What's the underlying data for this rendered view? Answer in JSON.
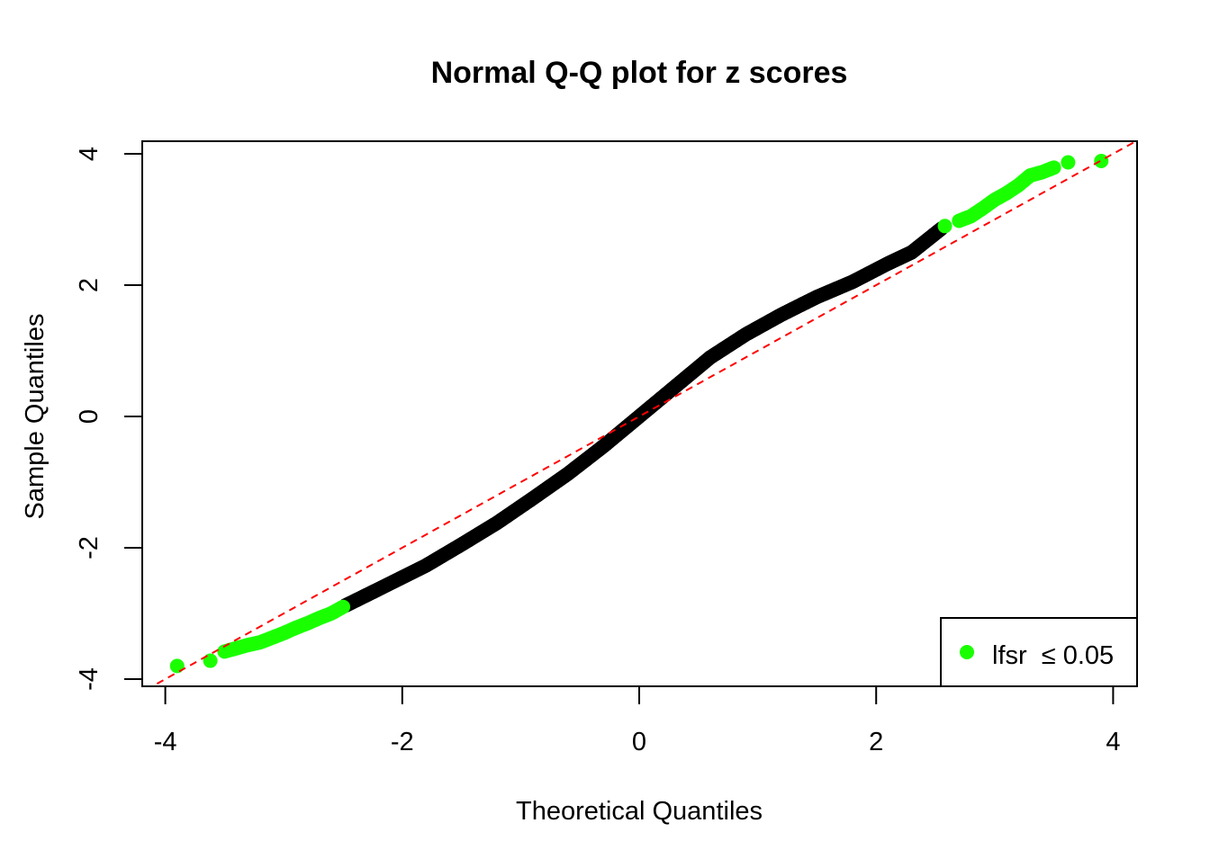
{
  "chart_data": {
    "type": "scatter",
    "title": "Normal Q-Q plot for z scores",
    "xlabel": "Theoretical Quantiles",
    "ylabel": "Sample Quantiles",
    "xlim": [
      -4.1,
      4.2
    ],
    "ylim": [
      -4.1,
      4.2
    ],
    "xticks": [
      -4,
      -2,
      0,
      2,
      4
    ],
    "yticks": [
      -4,
      -2,
      0,
      2,
      4
    ],
    "grid": false,
    "legend": {
      "placement": "bottom-right",
      "label": "lfsr  ≤ 0.05",
      "color": "#1aff00"
    },
    "reference_line": {
      "intercept": 0,
      "slope": 1,
      "color": "#ff0000",
      "style": "dashed"
    },
    "series": [
      {
        "color": "#1aff00",
        "points": [
          [
            -3.9,
            -3.8
          ],
          [
            -3.62,
            -3.72
          ],
          [
            -3.5,
            -3.58
          ],
          [
            -3.4,
            -3.53
          ],
          [
            -3.3,
            -3.48
          ],
          [
            -3.2,
            -3.44
          ],
          [
            -3.1,
            -3.37
          ],
          [
            -3.0,
            -3.3
          ],
          [
            -2.9,
            -3.22
          ],
          [
            -2.8,
            -3.15
          ],
          [
            -2.7,
            -3.07
          ],
          [
            -2.6,
            -3.0
          ],
          [
            -2.5,
            -2.9
          ]
        ]
      },
      {
        "color": "#000000",
        "points": [
          [
            -2.48,
            -2.88
          ],
          [
            -2.2,
            -2.63
          ],
          [
            -1.8,
            -2.27
          ],
          [
            -1.5,
            -1.95
          ],
          [
            -1.2,
            -1.62
          ],
          [
            -0.9,
            -1.25
          ],
          [
            -0.6,
            -0.87
          ],
          [
            -0.3,
            -0.45
          ],
          [
            0,
            0
          ],
          [
            0.3,
            0.45
          ],
          [
            0.6,
            0.9
          ],
          [
            0.9,
            1.25
          ],
          [
            1.2,
            1.55
          ],
          [
            1.5,
            1.82
          ],
          [
            1.8,
            2.05
          ],
          [
            2.1,
            2.33
          ],
          [
            2.3,
            2.5
          ],
          [
            2.55,
            2.86
          ]
        ]
      },
      {
        "color": "#1aff00",
        "points": [
          [
            2.58,
            2.9
          ],
          [
            2.7,
            2.98
          ],
          [
            2.8,
            3.05
          ],
          [
            2.9,
            3.17
          ],
          [
            3.0,
            3.3
          ],
          [
            3.1,
            3.4
          ],
          [
            3.2,
            3.52
          ],
          [
            3.3,
            3.67
          ],
          [
            3.4,
            3.72
          ],
          [
            3.5,
            3.79
          ],
          [
            3.62,
            3.87
          ],
          [
            3.9,
            3.89
          ]
        ]
      }
    ]
  }
}
